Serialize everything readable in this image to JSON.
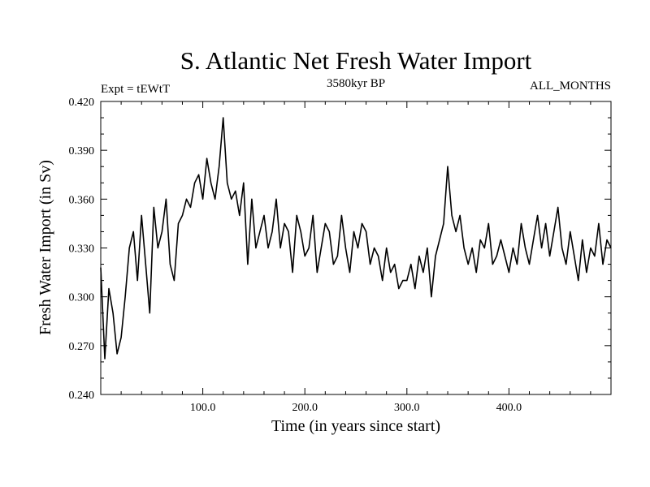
{
  "chart_data": {
    "type": "line",
    "title": "S. Atlantic Net Fresh Water Import",
    "subtitle_left": "Expt = tEWtT",
    "subtitle_center": "3580kyr BP",
    "subtitle_right": "ALL_MONTHS",
    "xlabel": "Time (in years since start)",
    "ylabel": "Fresh Water Import (in Sv)",
    "xlim": [
      0,
      500
    ],
    "ylim": [
      0.24,
      0.42
    ],
    "xticks": [
      100,
      200,
      300,
      400
    ],
    "xtick_labels": [
      "100.0",
      "200.0",
      "300.0",
      "400.0"
    ],
    "yticks": [
      0.24,
      0.27,
      0.3,
      0.33,
      0.36,
      0.39,
      0.42
    ],
    "ytick_labels": [
      "0.240",
      "0.270",
      "0.300",
      "0.330",
      "0.360",
      "0.390",
      "0.420"
    ],
    "grid": false,
    "series": [
      {
        "name": "Fresh Water Import",
        "x": [
          0,
          4,
          8,
          12,
          16,
          20,
          24,
          28,
          32,
          36,
          40,
          44,
          48,
          52,
          56,
          60,
          64,
          68,
          72,
          76,
          80,
          84,
          88,
          92,
          96,
          100,
          104,
          108,
          112,
          116,
          120,
          124,
          128,
          132,
          136,
          140,
          144,
          148,
          152,
          156,
          160,
          164,
          168,
          172,
          176,
          180,
          184,
          188,
          192,
          196,
          200,
          204,
          208,
          212,
          216,
          220,
          224,
          228,
          232,
          236,
          240,
          244,
          248,
          252,
          256,
          260,
          264,
          268,
          272,
          276,
          280,
          284,
          288,
          292,
          296,
          300,
          304,
          308,
          312,
          316,
          320,
          324,
          328,
          332,
          336,
          340,
          344,
          348,
          352,
          356,
          360,
          364,
          368,
          372,
          376,
          380,
          384,
          388,
          392,
          396,
          400,
          404,
          408,
          412,
          416,
          420,
          424,
          428,
          432,
          436,
          440,
          444,
          448,
          452,
          456,
          460,
          464,
          468,
          472,
          476,
          480,
          484,
          488,
          492,
          496,
          500
        ],
        "values": [
          0.318,
          0.262,
          0.305,
          0.29,
          0.265,
          0.275,
          0.3,
          0.33,
          0.34,
          0.31,
          0.35,
          0.32,
          0.29,
          0.355,
          0.33,
          0.34,
          0.36,
          0.32,
          0.31,
          0.345,
          0.35,
          0.36,
          0.355,
          0.37,
          0.375,
          0.36,
          0.385,
          0.37,
          0.36,
          0.38,
          0.41,
          0.37,
          0.36,
          0.365,
          0.35,
          0.37,
          0.32,
          0.36,
          0.33,
          0.34,
          0.35,
          0.33,
          0.34,
          0.36,
          0.33,
          0.345,
          0.34,
          0.315,
          0.35,
          0.34,
          0.325,
          0.33,
          0.35,
          0.315,
          0.33,
          0.345,
          0.34,
          0.32,
          0.325,
          0.35,
          0.33,
          0.315,
          0.34,
          0.33,
          0.345,
          0.34,
          0.32,
          0.33,
          0.325,
          0.31,
          0.33,
          0.315,
          0.32,
          0.305,
          0.31,
          0.31,
          0.32,
          0.305,
          0.325,
          0.315,
          0.33,
          0.3,
          0.325,
          0.335,
          0.345,
          0.38,
          0.35,
          0.34,
          0.35,
          0.33,
          0.32,
          0.33,
          0.315,
          0.335,
          0.33,
          0.345,
          0.32,
          0.325,
          0.335,
          0.325,
          0.315,
          0.33,
          0.32,
          0.345,
          0.33,
          0.32,
          0.335,
          0.35,
          0.33,
          0.345,
          0.325,
          0.34,
          0.355,
          0.33,
          0.32,
          0.34,
          0.325,
          0.31,
          0.335,
          0.315,
          0.33,
          0.325,
          0.345,
          0.32,
          0.335,
          0.33
        ]
      }
    ]
  }
}
